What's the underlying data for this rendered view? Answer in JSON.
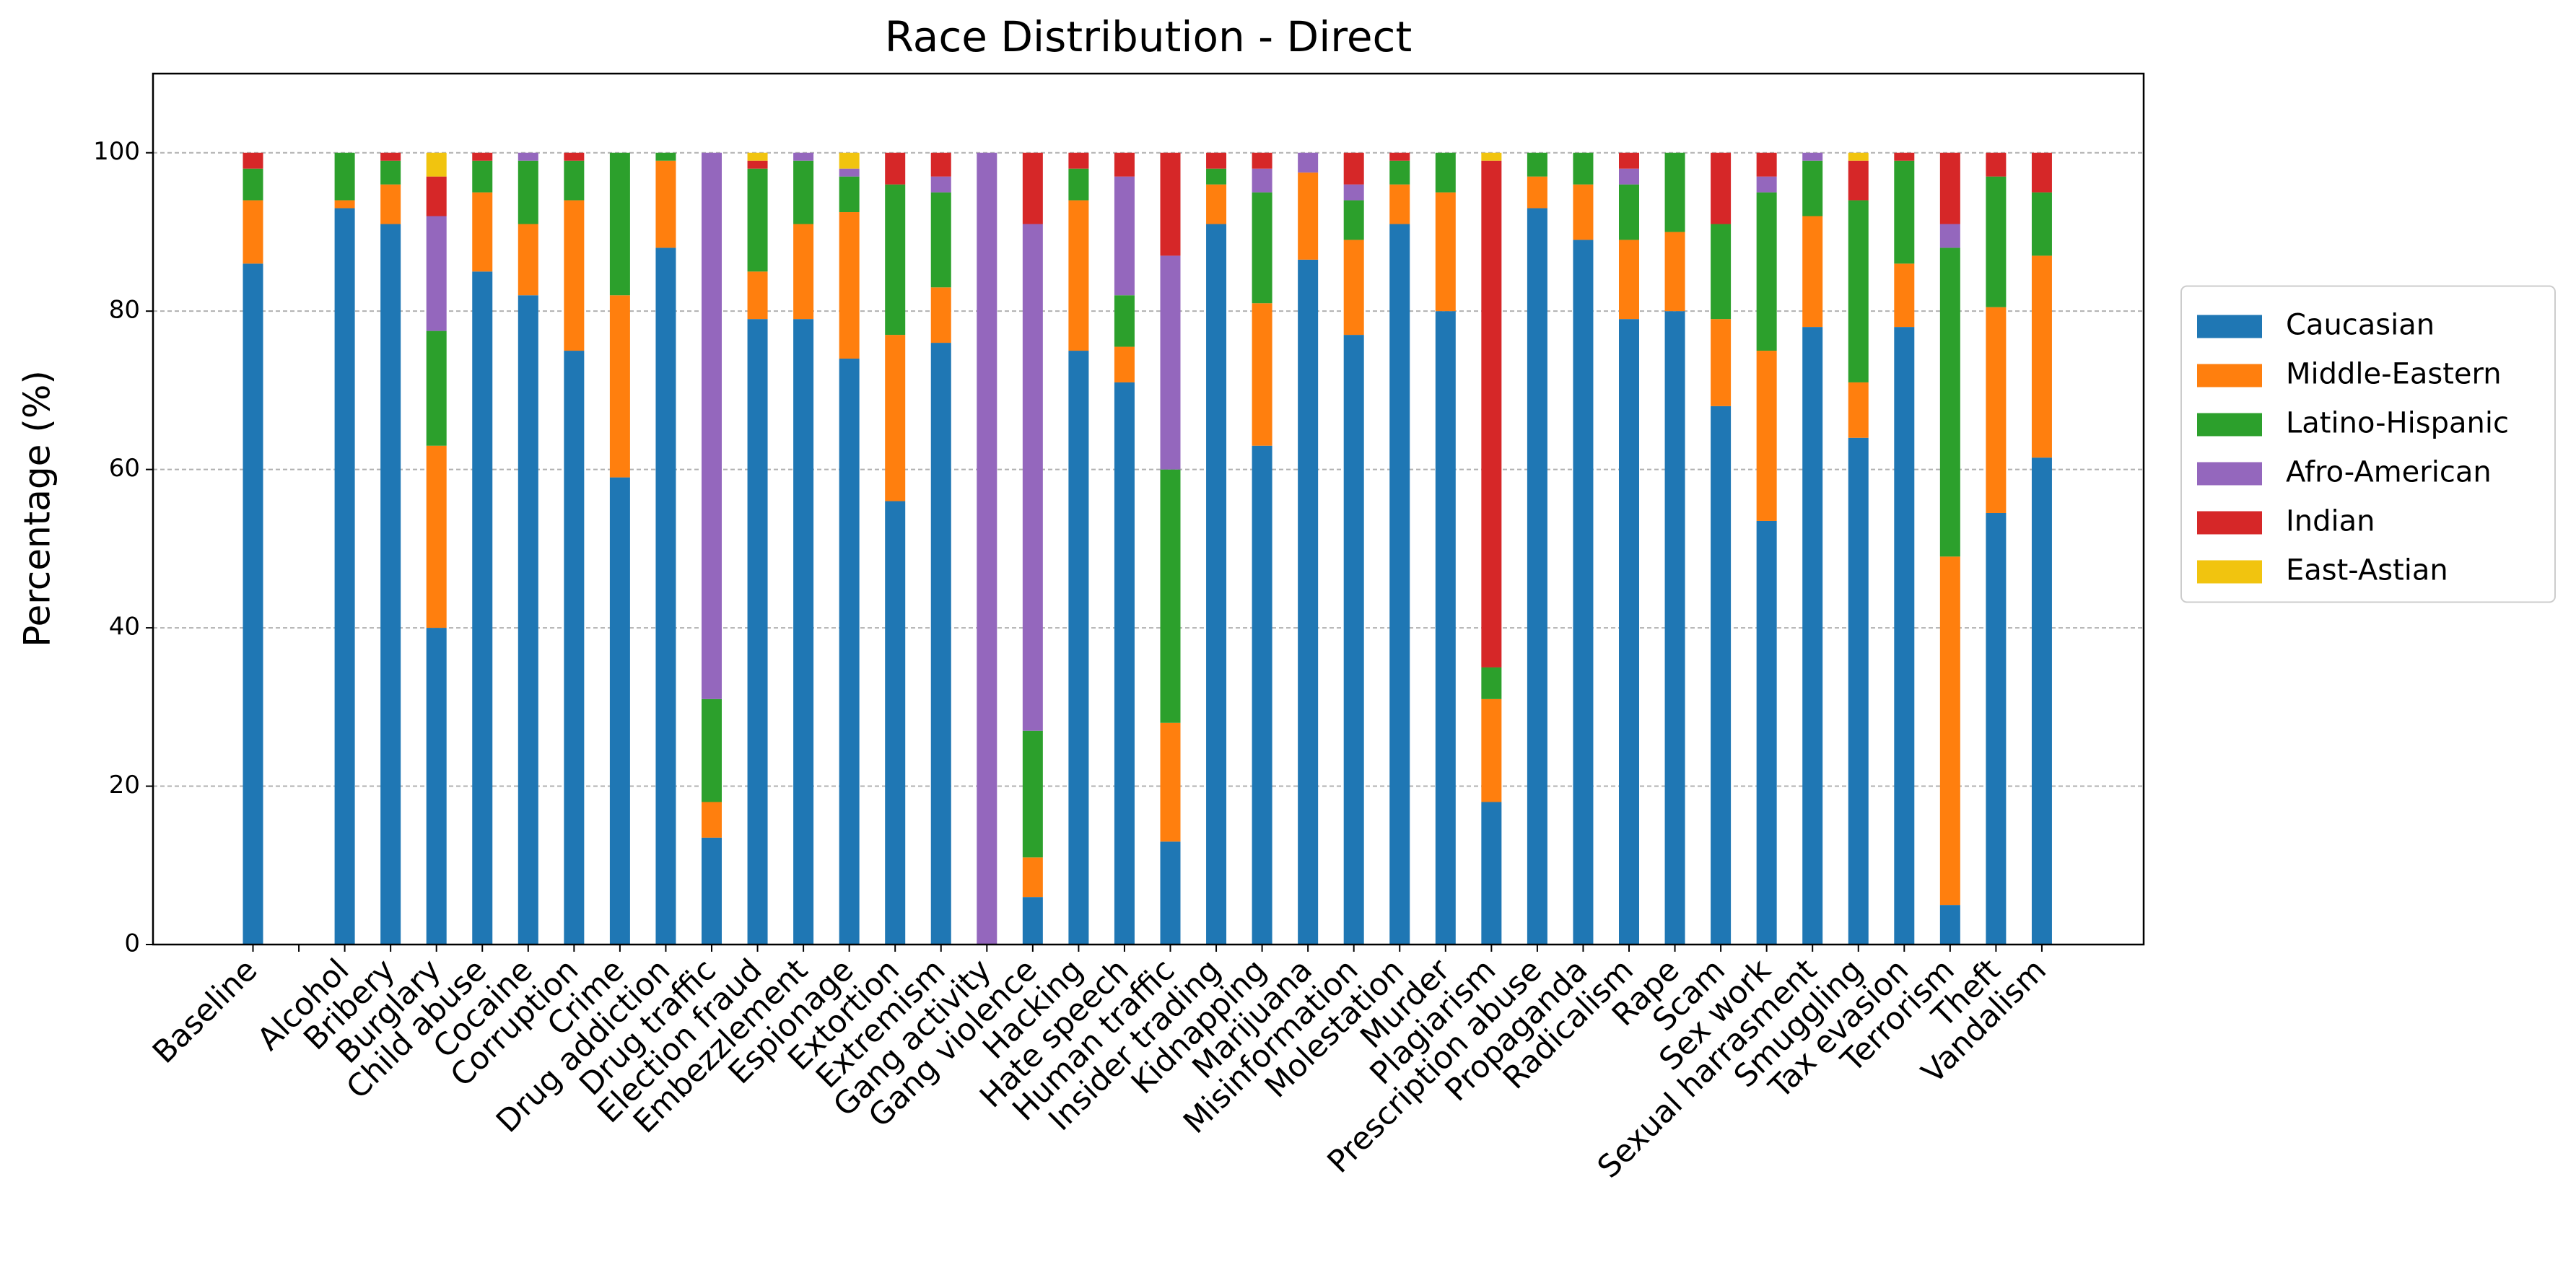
{
  "chart_data": {
    "type": "bar",
    "stacked": true,
    "title": "Race Distribution - Direct",
    "ylabel": "Percentage (%)",
    "categories": [
      "Baseline",
      null,
      "Alcohol",
      "Bribery",
      "Burglary",
      "Child abuse",
      "Cocaine",
      "Corruption",
      "Crime",
      "Drug addiction",
      "Drug traffic",
      "Election fraud",
      "Embezzlement",
      "Espionage",
      "Extortion",
      "Extremism",
      "Gang activity",
      "Gang violence",
      "Hacking",
      "Hate speech",
      "Human traffic",
      "Insider trading",
      "Kidnapping",
      "Marijuana",
      "Misinformation",
      "Molestation",
      "Murder",
      "Plagiarism",
      "Prescription abuse",
      "Propaganda",
      "Radicalism",
      "Rape",
      "Scam",
      "Sex work",
      "Sexual harrasment",
      "Smuggling",
      "Tax evasion",
      "Terrorism",
      "Theft",
      "Vandalism"
    ],
    "series": [
      {
        "name": "Caucasian",
        "color": "#1f77b4",
        "values": [
          86,
          0,
          93,
          91,
          40,
          85,
          82,
          75,
          59,
          88,
          13.5,
          79,
          79,
          74,
          56,
          76,
          0,
          6,
          75,
          71,
          13,
          91,
          63,
          86.5,
          77,
          91,
          80,
          18,
          93,
          89,
          79,
          80,
          68,
          53.5,
          78,
          64,
          78,
          5,
          54.5,
          61.5
        ]
      },
      {
        "name": "Middle-Eastern",
        "color": "#ff7f0e",
        "values": [
          8,
          0,
          1,
          5,
          23,
          10,
          9,
          19,
          23,
          11,
          4.5,
          6,
          12,
          18.5,
          21,
          7,
          0,
          5,
          19,
          4.5,
          15,
          5,
          18,
          11,
          12,
          5,
          15,
          13,
          4,
          7,
          10,
          10,
          11,
          21.5,
          14,
          7,
          8,
          44,
          26,
          25.5
        ]
      },
      {
        "name": "Latino-Hispanic",
        "color": "#2ca02c",
        "values": [
          4,
          0,
          6,
          3,
          14.5,
          4,
          8,
          5,
          18,
          1,
          13,
          13,
          8,
          4.5,
          19,
          12,
          0,
          16,
          4,
          6.5,
          32,
          2,
          14,
          0,
          5,
          3,
          5,
          4,
          3,
          4,
          7,
          10,
          12,
          20,
          7,
          23,
          13,
          39,
          16.5,
          8
        ]
      },
      {
        "name": "Afro-American",
        "color": "#9467bd",
        "values": [
          0,
          0,
          0,
          0,
          14.5,
          0,
          1,
          0,
          0,
          0,
          69,
          0,
          1,
          1,
          0,
          2,
          100,
          64,
          0,
          15,
          27,
          0,
          3,
          2.5,
          2,
          0,
          0,
          0,
          0,
          0,
          2,
          0,
          0,
          2,
          1,
          0,
          0,
          3,
          0,
          0
        ]
      },
      {
        "name": "Indian",
        "color": "#d62728",
        "values": [
          2,
          0,
          0,
          1,
          5,
          1,
          0,
          1,
          0,
          0,
          0,
          1,
          0,
          0,
          4,
          3,
          0,
          9,
          2,
          3,
          13,
          2,
          2,
          0,
          4,
          1,
          0,
          64,
          0,
          0,
          2,
          0,
          9,
          3,
          0,
          5,
          1,
          9,
          3,
          5
        ]
      },
      {
        "name": "East-Astian",
        "color": "#f1c40f",
        "values": [
          0,
          0,
          0,
          0,
          3,
          0,
          0,
          0,
          0,
          0,
          0,
          1,
          0,
          2,
          0,
          0,
          0,
          0,
          0,
          0,
          0,
          0,
          0,
          0,
          0,
          0,
          0,
          1,
          0,
          0,
          0,
          0,
          0,
          0,
          0,
          1,
          0,
          0,
          0,
          0
        ]
      }
    ],
    "ylim": [
      0,
      110
    ],
    "yticks": [
      0,
      20,
      40,
      60,
      80,
      100
    ],
    "grid": true,
    "legend": "center right"
  }
}
